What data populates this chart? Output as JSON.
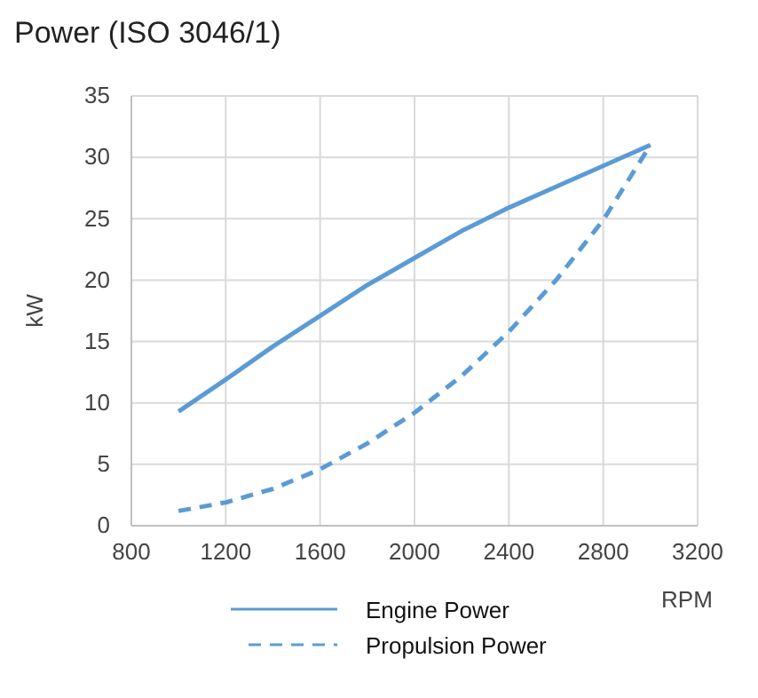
{
  "chart_data": {
    "type": "line",
    "title": "Power (ISO 3046/1)",
    "xlabel": "RPM",
    "ylabel": "kW",
    "x": [
      1000,
      1200,
      1400,
      1600,
      1800,
      2000,
      2200,
      2400,
      2600,
      2800,
      3000
    ],
    "series": [
      {
        "name": "Engine Power",
        "color": "#5b9bd5",
        "line_style": "solid",
        "values": [
          9.3,
          11.9,
          14.6,
          17.1,
          19.6,
          21.8,
          24.0,
          25.9,
          27.6,
          29.3,
          31
        ]
      },
      {
        "name": "Propulsion Power",
        "color": "#5b9bd5",
        "line_style": "dashed",
        "values": [
          1.2,
          1.9,
          3.0,
          4.6,
          6.7,
          9.2,
          12.2,
          15.8,
          20.0,
          24.9,
          31
        ]
      }
    ],
    "xlim": [
      800,
      3200
    ],
    "xticks": [
      800,
      1200,
      1600,
      2000,
      2400,
      2800,
      3200
    ],
    "ylim": [
      0,
      35
    ],
    "yticks": [
      0,
      5,
      10,
      15,
      20,
      25,
      30,
      35
    ],
    "grid": true,
    "legend": "bottom",
    "marker": "none"
  }
}
